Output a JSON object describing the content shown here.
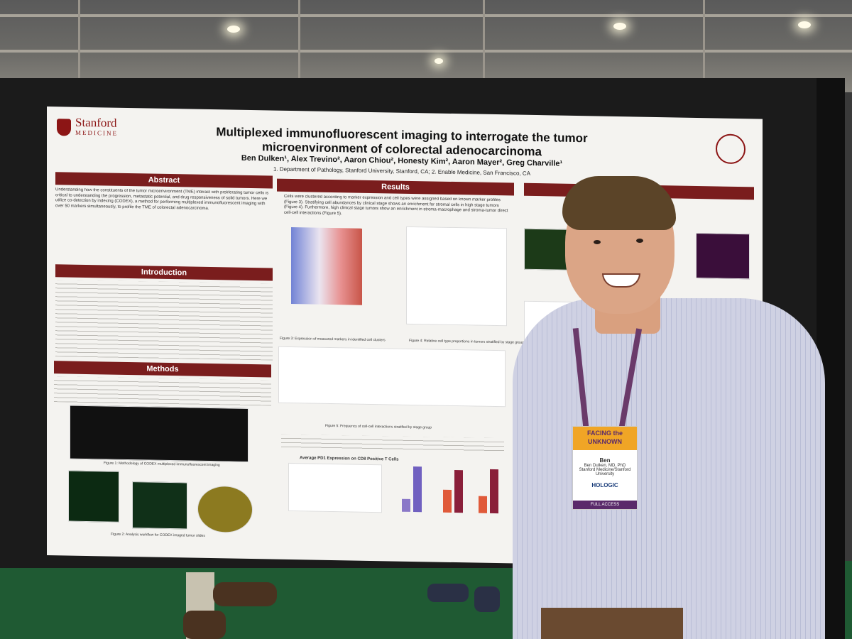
{
  "poster": {
    "logo_name": "Stanford",
    "logo_sub": "MEDICINE",
    "title": "Multiplexed immunofluorescent imaging to interrogate the tumor microenvironment of colorectal adenocarcinoma",
    "authors": "Ben Dulken¹, Alex Trevino², Aaron Chiou², Honesty Kim², Aaron Mayer², Greg Charville¹",
    "affiliations": "1. Department of Pathology, Stanford University, Stanford, CA; 2. Enable Medicine, San Francisco, CA",
    "sections": {
      "abstract": "Abstract",
      "introduction": "Introduction",
      "methods": "Methods",
      "results": "Results"
    },
    "abstract_text": "Understanding how the constituents of the tumor microenvironment (TME) interact with proliferating tumor cells is critical to understanding the progression, metastatic potential, and drug responsiveness of solid tumors. Here we utilize co-detection by indexing (CODEX), a method for performing multiplexed immunofluorescent imaging with over 50 markers simultaneously, to profile the TME of colorectal adenocarcinoma.",
    "results_text": "Cells were clustered according to marker expression and cell types were assigned based on known marker profiles (Figure 3). Stratifying cell abundances by clinical stage shows an enrichment for stromal cells in high stage tumors (Figure 4). Furthermore, high clinical stage tumors show an enrichment in stroma-macrophage and stroma-tumor direct cell-cell interactions (Figure 5).",
    "fig3_caption": "Figure 3: Expression of measured markers in identified cell clusters",
    "fig4_caption": "Figure 4: Relative cell type proportions in tumors stratified by stage group",
    "fig5_caption": "Figure 5: Frequency of cell-cell interactions stratified by stage group",
    "fig6_title": "Average PD1 Expression on CD8 Positive T Cells",
    "fig1_caption": "Figure 1: Methodology of CODEX multiplexed immunofluorescent imaging",
    "fig2_caption": "Figure 2: Analysis workflow for CODEX imaged tumor slides"
  },
  "badge": {
    "event": "FACING the UNKNOWN",
    "name": "Ben",
    "full_name": "Ben Dulken, MD, PhD",
    "org": "Stanford Medicine/Stanford University",
    "sponsor": "HOLOGIC",
    "tier": "FULL ACCESS"
  },
  "colors": {
    "header_red": "#7a1d1d",
    "stanford_red": "#8c1515",
    "carpet_green": "#1f5a33"
  }
}
